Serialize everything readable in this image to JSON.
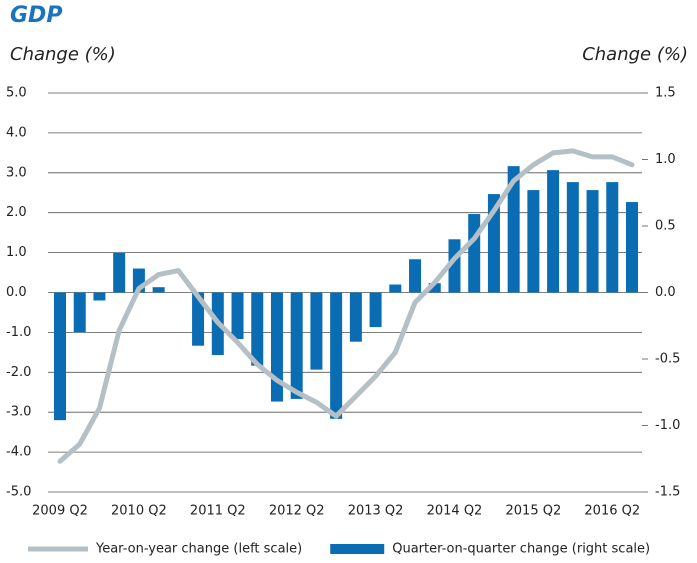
{
  "chart_data": {
    "type": "bar-line",
    "title": "GDP",
    "y_label": "Change (%)",
    "y2_label": "Change (%)",
    "categories": [
      "2009 Q2",
      null,
      null,
      null,
      "2010 Q2",
      null,
      null,
      null,
      "2011 Q2",
      null,
      null,
      null,
      "2012 Q2",
      null,
      null,
      null,
      "2013 Q2",
      null,
      null,
      null,
      "2014 Q2",
      null,
      null,
      null,
      "2015 Q2",
      null,
      null,
      null,
      "2016 Q2",
      null
    ],
    "series": [
      {
        "name": "Year-on-year change (left scale)",
        "type": "line",
        "color": "#b4c0c5",
        "values": [
          -4.23,
          -3.8,
          -2.9,
          -0.95,
          0.1,
          0.45,
          0.55,
          -0.1,
          -0.75,
          -1.25,
          -1.8,
          -2.2,
          -2.5,
          -2.75,
          -3.1,
          -2.6,
          -2.1,
          -1.5,
          -0.25,
          0.25,
          0.85,
          1.35,
          2.05,
          2.8,
          3.2,
          3.5,
          3.55,
          3.4,
          3.4,
          3.2
        ]
      },
      {
        "name": "Quarter-on-quarter change (right scale)",
        "type": "bar",
        "axis": "y2",
        "color": "#0a6db4",
        "values": [
          -0.96,
          -0.3,
          -0.06,
          0.3,
          0.18,
          0.04,
          0,
          -0.4,
          -0.47,
          -0.35,
          -0.55,
          -0.82,
          -0.8,
          -0.58,
          -0.95,
          -0.37,
          -0.26,
          0.06,
          0.25,
          0.07,
          0.4,
          0.59,
          0.74,
          0.95,
          0.77,
          0.92,
          0.83,
          0.77,
          0.83,
          0.68
        ]
      }
    ],
    "ylim": [
      -5,
      5
    ],
    "yticks": [
      {
        "value": 5,
        "label": "5.0"
      },
      {
        "value": 4,
        "label": "4.0"
      },
      {
        "value": 3,
        "label": "3.0"
      },
      {
        "value": 2,
        "label": "2.0"
      },
      {
        "value": 1,
        "label": "1.0"
      },
      {
        "value": 0,
        "label": "0.0"
      },
      {
        "value": -1,
        "label": "-1.0"
      },
      {
        "value": -2,
        "label": "-2.0"
      },
      {
        "value": -3,
        "label": "-3.0"
      },
      {
        "value": -4,
        "label": "-4.0"
      },
      {
        "value": -5,
        "label": "-5.0"
      }
    ],
    "y2lim": [
      -1.5,
      1.5
    ],
    "y2ticks": [
      1.5,
      {
        "value": 1,
        "label": "1.0"
      },
      0.5,
      {
        "value": 0,
        "label": "0.0"
      },
      -0.5,
      {
        "value": -1,
        "label": "-1.0"
      },
      -1.5
    ],
    "grid": true,
    "legend": "bottom"
  }
}
